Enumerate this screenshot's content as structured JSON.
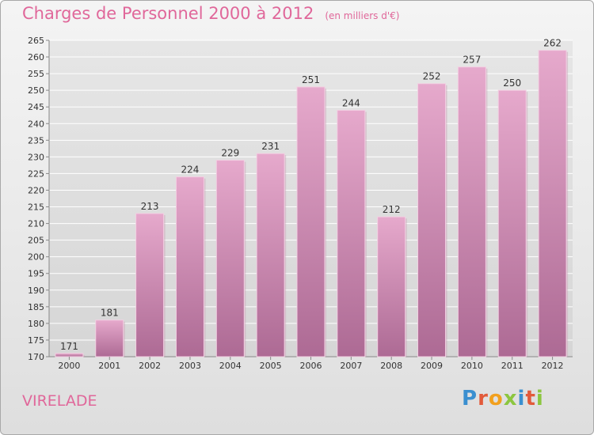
{
  "title": "Charges de Personnel 2000 à 2012",
  "unit": "(en milliers d'€)",
  "commune": "VIRELADE",
  "logo_text": "Proxiti",
  "colors": {
    "bar_top": "#e6a9cc",
    "bar_bottom": "#b06e97",
    "title": "#e0679a",
    "grid": "#ffffff"
  },
  "chart_data": {
    "type": "bar",
    "categories": [
      "2000",
      "2001",
      "2002",
      "2003",
      "2004",
      "2005",
      "2006",
      "2007",
      "2008",
      "2009",
      "2010",
      "2011",
      "2012"
    ],
    "values": [
      171,
      181,
      213,
      224,
      229,
      231,
      251,
      244,
      212,
      252,
      257,
      250,
      262
    ],
    "ylim": [
      170,
      265
    ],
    "yticks": [
      170,
      175,
      180,
      185,
      190,
      195,
      200,
      205,
      210,
      215,
      220,
      225,
      230,
      235,
      240,
      245,
      250,
      255,
      260,
      265
    ],
    "grid": true,
    "title": "Charges de Personnel 2000 à 2012",
    "xlabel": "",
    "ylabel": ""
  }
}
